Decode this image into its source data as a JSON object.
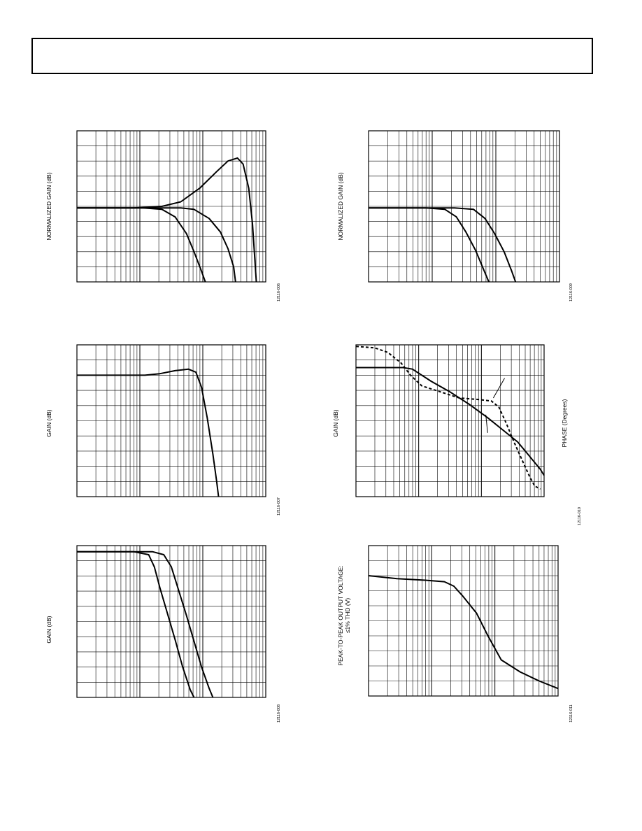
{
  "header": {
    "text": ""
  },
  "chart_data": [
    {
      "id": "fig-tl",
      "type": "line",
      "ylabel": "NORMALIZED GAIN (dB)",
      "figure_id": "12116-006",
      "xscale": "log",
      "grid": true,
      "series": [
        {
          "style": "solid",
          "points": [
            [
              0,
              0.51
            ],
            [
              0.3,
              0.51
            ],
            [
              0.45,
              0.5
            ],
            [
              0.55,
              0.47
            ],
            [
              0.65,
              0.38
            ],
            [
              0.74,
              0.27
            ],
            [
              0.8,
              0.2
            ],
            [
              0.85,
              0.18
            ],
            [
              0.88,
              0.22
            ],
            [
              0.91,
              0.38
            ],
            [
              0.93,
              0.62
            ],
            [
              0.95,
              1
            ]
          ]
        },
        {
          "style": "solid",
          "points": [
            [
              0,
              0.51
            ],
            [
              0.4,
              0.51
            ],
            [
              0.55,
              0.51
            ],
            [
              0.62,
              0.52
            ],
            [
              0.7,
              0.58
            ],
            [
              0.76,
              0.67
            ],
            [
              0.8,
              0.78
            ],
            [
              0.83,
              0.9
            ],
            [
              0.84,
              1
            ]
          ]
        },
        {
          "style": "solid",
          "points": [
            [
              0,
              0.51
            ],
            [
              0.35,
              0.51
            ],
            [
              0.45,
              0.52
            ],
            [
              0.52,
              0.57
            ],
            [
              0.58,
              0.68
            ],
            [
              0.62,
              0.8
            ],
            [
              0.66,
              0.93
            ],
            [
              0.68,
              1
            ]
          ]
        }
      ]
    },
    {
      "id": "fig-tr",
      "type": "line",
      "ylabel": "NORMALIZED GAIN (dB)",
      "figure_id": "12116-009",
      "xscale": "log",
      "grid": true,
      "series": [
        {
          "style": "solid",
          "points": [
            [
              0,
              0.51
            ],
            [
              0.45,
              0.51
            ],
            [
              0.55,
              0.52
            ],
            [
              0.61,
              0.58
            ],
            [
              0.66,
              0.68
            ],
            [
              0.71,
              0.8
            ],
            [
              0.75,
              0.93
            ],
            [
              0.77,
              1
            ]
          ]
        },
        {
          "style": "solid",
          "points": [
            [
              0,
              0.51
            ],
            [
              0.3,
              0.51
            ],
            [
              0.4,
              0.52
            ],
            [
              0.46,
              0.57
            ],
            [
              0.51,
              0.67
            ],
            [
              0.56,
              0.79
            ],
            [
              0.6,
              0.91
            ],
            [
              0.63,
              1
            ]
          ]
        }
      ]
    },
    {
      "id": "fig-ml",
      "type": "line",
      "ylabel": "GAIN (dB)",
      "figure_id": "12116-007",
      "xscale": "log",
      "grid": true,
      "series": [
        {
          "style": "solid",
          "points": [
            [
              0,
              0.2
            ],
            [
              0.36,
              0.2
            ],
            [
              0.44,
              0.19
            ],
            [
              0.52,
              0.17
            ],
            [
              0.59,
              0.16
            ],
            [
              0.63,
              0.18
            ],
            [
              0.66,
              0.28
            ],
            [
              0.69,
              0.48
            ],
            [
              0.72,
              0.72
            ],
            [
              0.74,
              0.9
            ],
            [
              0.75,
              1
            ]
          ]
        }
      ]
    },
    {
      "id": "fig-mr",
      "type": "line",
      "ylabel": "GAIN (dB)",
      "ylabel2": "PHASE (Degrees)",
      "figure_id": "12116-010",
      "xscale": "log",
      "grid": true,
      "series": [
        {
          "style": "solid",
          "points": [
            [
              0,
              0.15
            ],
            [
              0.25,
              0.15
            ],
            [
              0.3,
              0.16
            ],
            [
              0.4,
              0.24
            ],
            [
              0.5,
              0.31
            ],
            [
              0.6,
              0.39
            ],
            [
              0.7,
              0.48
            ],
            [
              0.78,
              0.56
            ],
            [
              0.86,
              0.64
            ],
            [
              0.92,
              0.73
            ],
            [
              0.98,
              0.82
            ],
            [
              1,
              0.86
            ]
          ]
        },
        {
          "style": "dashed",
          "points": [
            [
              0,
              0.01
            ],
            [
              0.1,
              0.02
            ],
            [
              0.17,
              0.05
            ],
            [
              0.24,
              0.12
            ],
            [
              0.29,
              0.2
            ],
            [
              0.35,
              0.27
            ],
            [
              0.45,
              0.31
            ],
            [
              0.55,
              0.35
            ],
            [
              0.65,
              0.36
            ],
            [
              0.72,
              0.37
            ],
            [
              0.76,
              0.41
            ],
            [
              0.8,
              0.52
            ],
            [
              0.84,
              0.64
            ],
            [
              0.88,
              0.75
            ],
            [
              0.92,
              0.86
            ],
            [
              0.95,
              0.93
            ],
            [
              0.98,
              0.95
            ]
          ]
        }
      ]
    },
    {
      "id": "fig-bl",
      "type": "line",
      "ylabel": "GAIN (dB)",
      "figure_id": "12116-008",
      "xscale": "log",
      "grid": true,
      "series": [
        {
          "style": "solid",
          "points": [
            [
              0,
              0.04
            ],
            [
              0.4,
              0.04
            ],
            [
              0.46,
              0.06
            ],
            [
              0.5,
              0.14
            ],
            [
              0.54,
              0.3
            ],
            [
              0.58,
              0.46
            ],
            [
              0.62,
              0.63
            ],
            [
              0.66,
              0.8
            ],
            [
              0.7,
              0.94
            ],
            [
              0.72,
              1
            ]
          ]
        },
        {
          "style": "solid",
          "points": [
            [
              0,
              0.04
            ],
            [
              0.3,
              0.04
            ],
            [
              0.38,
              0.06
            ],
            [
              0.41,
              0.14
            ],
            [
              0.44,
              0.28
            ],
            [
              0.48,
              0.45
            ],
            [
              0.52,
              0.62
            ],
            [
              0.56,
              0.8
            ],
            [
              0.6,
              0.95
            ],
            [
              0.62,
              1
            ]
          ]
        }
      ]
    },
    {
      "id": "fig-br",
      "type": "line",
      "ylabel": "PEAK-TO-PEAK OUTPUT VOLTAGE:",
      "ylabel_line2": "≤1% THD (V)",
      "figure_id": "12116-011",
      "xscale": "log",
      "grid": true,
      "series": [
        {
          "style": "solid",
          "points": [
            [
              0,
              0.2
            ],
            [
              0.15,
              0.22
            ],
            [
              0.3,
              0.23
            ],
            [
              0.4,
              0.24
            ],
            [
              0.45,
              0.27
            ],
            [
              0.5,
              0.34
            ],
            [
              0.57,
              0.45
            ],
            [
              0.63,
              0.6
            ],
            [
              0.7,
              0.76
            ],
            [
              0.8,
              0.84
            ],
            [
              0.9,
              0.9
            ],
            [
              1,
              0.95
            ]
          ]
        }
      ]
    }
  ]
}
